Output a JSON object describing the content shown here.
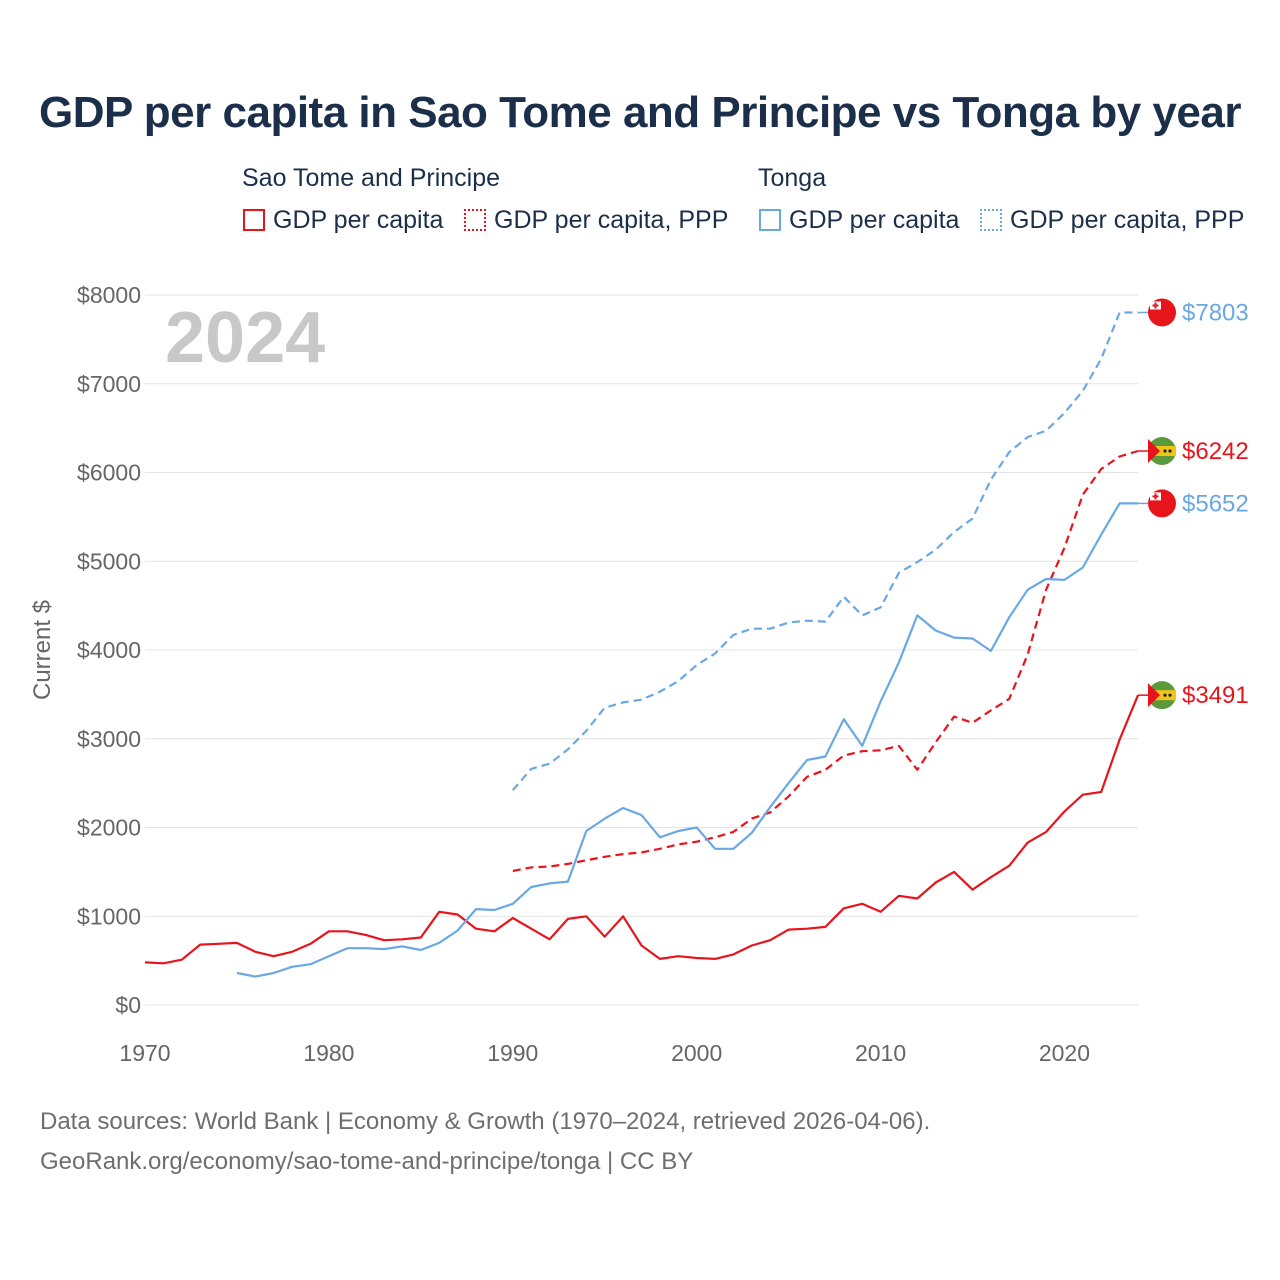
{
  "chart_data": {
    "type": "line",
    "title": "GDP per capita in Sao Tome and Principe vs Tonga by year",
    "ylabel": "Current $",
    "xlabel": "",
    "year_label": "2024",
    "ylim": [
      0,
      8000
    ],
    "xlim": [
      1970,
      2024
    ],
    "x_ticks": [
      "1970",
      "1980",
      "1990",
      "2000",
      "2010",
      "2020"
    ],
    "y_ticks": [
      "$0",
      "$1000",
      "$2000",
      "$3000",
      "$4000",
      "$5000",
      "$6000",
      "$7000",
      "$8000"
    ],
    "legend": {
      "groups": [
        {
          "title": "Sao Tome and Principe",
          "items": [
            "GDP per capita",
            "GDP per capita, PPP"
          ]
        },
        {
          "title": "Tonga",
          "items": [
            "GDP per capita",
            "GDP per capita, PPP"
          ]
        }
      ]
    },
    "series": [
      {
        "name": "Sao Tome and Principe GDP per capita",
        "color": "#e8141c",
        "style": "solid",
        "end_label": "$3491",
        "points": [
          [
            1970,
            480
          ],
          [
            1971,
            470
          ],
          [
            1972,
            510
          ],
          [
            1973,
            680
          ],
          [
            1974,
            690
          ],
          [
            1975,
            700
          ],
          [
            1976,
            600
          ],
          [
            1977,
            550
          ],
          [
            1978,
            600
          ],
          [
            1979,
            690
          ],
          [
            1980,
            830
          ],
          [
            1981,
            830
          ],
          [
            1982,
            790
          ],
          [
            1983,
            730
          ],
          [
            1984,
            740
          ],
          [
            1985,
            760
          ],
          [
            1986,
            1050
          ],
          [
            1987,
            1020
          ],
          [
            1988,
            860
          ],
          [
            1989,
            830
          ],
          [
            1990,
            980
          ],
          [
            1991,
            860
          ],
          [
            1992,
            740
          ],
          [
            1993,
            970
          ],
          [
            1994,
            1000
          ],
          [
            1995,
            770
          ],
          [
            1996,
            1000
          ],
          [
            1997,
            670
          ],
          [
            1998,
            520
          ],
          [
            1999,
            550
          ],
          [
            2000,
            530
          ],
          [
            2001,
            520
          ],
          [
            2002,
            570
          ],
          [
            2003,
            670
          ],
          [
            2004,
            730
          ],
          [
            2005,
            850
          ],
          [
            2006,
            860
          ],
          [
            2007,
            880
          ],
          [
            2008,
            1090
          ],
          [
            2009,
            1140
          ],
          [
            2010,
            1050
          ],
          [
            2011,
            1230
          ],
          [
            2012,
            1200
          ],
          [
            2013,
            1380
          ],
          [
            2014,
            1500
          ],
          [
            2015,
            1300
          ],
          [
            2016,
            1440
          ],
          [
            2017,
            1570
          ],
          [
            2018,
            1830
          ],
          [
            2019,
            1950
          ],
          [
            2020,
            2180
          ],
          [
            2021,
            2370
          ],
          [
            2022,
            2400
          ],
          [
            2023,
            2990
          ],
          [
            2024,
            3491
          ]
        ]
      },
      {
        "name": "Sao Tome and Principe GDP per capita, PPP",
        "color": "#e8141c",
        "style": "dashed",
        "end_label": "$6242",
        "points": [
          [
            1990,
            1510
          ],
          [
            1991,
            1550
          ],
          [
            1992,
            1560
          ],
          [
            1993,
            1590
          ],
          [
            1994,
            1630
          ],
          [
            1995,
            1670
          ],
          [
            1996,
            1700
          ],
          [
            1997,
            1720
          ],
          [
            1998,
            1760
          ],
          [
            1999,
            1810
          ],
          [
            2000,
            1840
          ],
          [
            2001,
            1890
          ],
          [
            2002,
            1950
          ],
          [
            2003,
            2100
          ],
          [
            2004,
            2170
          ],
          [
            2005,
            2350
          ],
          [
            2006,
            2570
          ],
          [
            2007,
            2650
          ],
          [
            2008,
            2810
          ],
          [
            2009,
            2860
          ],
          [
            2010,
            2870
          ],
          [
            2011,
            2920
          ],
          [
            2012,
            2650
          ],
          [
            2013,
            2960
          ],
          [
            2014,
            3250
          ],
          [
            2015,
            3180
          ],
          [
            2016,
            3320
          ],
          [
            2017,
            3450
          ],
          [
            2018,
            3950
          ],
          [
            2019,
            4680
          ],
          [
            2020,
            5150
          ],
          [
            2021,
            5750
          ],
          [
            2022,
            6040
          ],
          [
            2023,
            6180
          ],
          [
            2024,
            6242
          ]
        ]
      },
      {
        "name": "Tonga GDP per capita",
        "color": "#6aa8e4",
        "style": "solid",
        "end_label": "$5652",
        "points": [
          [
            1975,
            360
          ],
          [
            1976,
            320
          ],
          [
            1977,
            360
          ],
          [
            1978,
            430
          ],
          [
            1979,
            460
          ],
          [
            1980,
            550
          ],
          [
            1981,
            640
          ],
          [
            1982,
            640
          ],
          [
            1983,
            630
          ],
          [
            1984,
            660
          ],
          [
            1985,
            620
          ],
          [
            1986,
            700
          ],
          [
            1987,
            840
          ],
          [
            1988,
            1080
          ],
          [
            1989,
            1070
          ],
          [
            1990,
            1140
          ],
          [
            1991,
            1330
          ],
          [
            1992,
            1370
          ],
          [
            1993,
            1390
          ],
          [
            1994,
            1960
          ],
          [
            1995,
            2100
          ],
          [
            1996,
            2220
          ],
          [
            1997,
            2140
          ],
          [
            1998,
            1890
          ],
          [
            1999,
            1960
          ],
          [
            2000,
            2000
          ],
          [
            2001,
            1760
          ],
          [
            2002,
            1760
          ],
          [
            2003,
            1940
          ],
          [
            2004,
            2230
          ],
          [
            2005,
            2500
          ],
          [
            2006,
            2760
          ],
          [
            2007,
            2800
          ],
          [
            2008,
            3220
          ],
          [
            2009,
            2920
          ],
          [
            2010,
            3420
          ],
          [
            2011,
            3860
          ],
          [
            2012,
            4390
          ],
          [
            2013,
            4220
          ],
          [
            2014,
            4140
          ],
          [
            2015,
            4130
          ],
          [
            2016,
            3990
          ],
          [
            2017,
            4370
          ],
          [
            2018,
            4680
          ],
          [
            2019,
            4800
          ],
          [
            2020,
            4790
          ],
          [
            2021,
            4930
          ],
          [
            2022,
            5300
          ],
          [
            2023,
            5652
          ],
          [
            2024,
            5652
          ]
        ]
      },
      {
        "name": "Tonga GDP per capita, PPP",
        "color": "#6aa8e4",
        "style": "dashed",
        "end_label": "$7803",
        "points": [
          [
            1990,
            2420
          ],
          [
            1991,
            2660
          ],
          [
            1992,
            2720
          ],
          [
            1993,
            2880
          ],
          [
            1994,
            3090
          ],
          [
            1995,
            3350
          ],
          [
            1996,
            3410
          ],
          [
            1997,
            3440
          ],
          [
            1998,
            3530
          ],
          [
            1999,
            3650
          ],
          [
            2000,
            3830
          ],
          [
            2001,
            3960
          ],
          [
            2002,
            4170
          ],
          [
            2003,
            4240
          ],
          [
            2004,
            4240
          ],
          [
            2005,
            4310
          ],
          [
            2006,
            4330
          ],
          [
            2007,
            4320
          ],
          [
            2008,
            4600
          ],
          [
            2009,
            4390
          ],
          [
            2010,
            4480
          ],
          [
            2011,
            4870
          ],
          [
            2012,
            4990
          ],
          [
            2013,
            5130
          ],
          [
            2014,
            5330
          ],
          [
            2015,
            5480
          ],
          [
            2016,
            5920
          ],
          [
            2017,
            6230
          ],
          [
            2018,
            6400
          ],
          [
            2019,
            6470
          ],
          [
            2020,
            6670
          ],
          [
            2021,
            6920
          ],
          [
            2022,
            7280
          ],
          [
            2023,
            7803
          ],
          [
            2024,
            7803
          ]
        ]
      }
    ]
  },
  "footer": {
    "source_line1": "Data sources: World Bank | Economy & Growth (1970–2024, retrieved 2026-04-06).",
    "source_line2": "GeoRank.org/economy/sao-tome-and-principe/tonga | CC BY"
  },
  "colors": {
    "sao_tome": "#e8141c",
    "tonga": "#6aa8e4",
    "title": "#1b2f4b",
    "axis_text": "#666666",
    "year_watermark": "#c8c8c8"
  }
}
